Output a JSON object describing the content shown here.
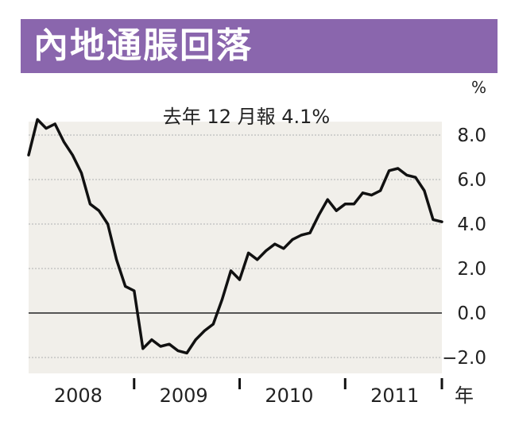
{
  "header": {
    "title": "內地通脹回落"
  },
  "chart_data": {
    "type": "line",
    "title": "內地通脹回落",
    "annotation": "去年 12 月報 4.1%",
    "y_unit": "%",
    "x_unit": "年",
    "ylim": [
      -2.8,
      8.6
    ],
    "yticks": [
      8.0,
      6.0,
      4.0,
      2.0,
      0.0,
      -2.0
    ],
    "ytick_labels": [
      "8.0",
      "6.0",
      "4.0",
      "2.0",
      "0.0",
      "−2.0"
    ],
    "xlim": [
      "2008-01",
      "2011-12"
    ],
    "year_labels": [
      "2008",
      "2009",
      "2010",
      "2011"
    ],
    "grid": true,
    "colors": {
      "line": "#111111",
      "fill": "#f1efea",
      "grid": "#bdbdbd",
      "zero": "#555555",
      "header": "#8a66ad"
    },
    "series": [
      {
        "x": [
          "2008-01",
          "2008-02",
          "2008-03",
          "2008-04",
          "2008-05",
          "2008-06",
          "2008-07",
          "2008-08",
          "2008-09",
          "2008-10",
          "2008-11",
          "2008-12",
          "2009-01",
          "2009-02",
          "2009-03",
          "2009-04",
          "2009-05",
          "2009-06",
          "2009-07",
          "2009-08",
          "2009-09",
          "2009-10",
          "2009-11",
          "2009-12",
          "2010-01",
          "2010-02",
          "2010-03",
          "2010-04",
          "2010-05",
          "2010-06",
          "2010-07",
          "2010-08",
          "2010-09",
          "2010-10",
          "2010-11",
          "2010-12",
          "2011-01",
          "2011-02",
          "2011-03",
          "2011-04",
          "2011-05",
          "2011-06",
          "2011-07",
          "2011-08",
          "2011-09",
          "2011-10",
          "2011-11",
          "2011-12"
        ],
        "values": [
          7.1,
          8.7,
          8.3,
          8.5,
          7.7,
          7.1,
          6.3,
          4.9,
          4.6,
          4.0,
          2.4,
          1.2,
          1.0,
          -1.6,
          -1.2,
          -1.5,
          -1.4,
          -1.7,
          -1.8,
          -1.2,
          -0.8,
          -0.5,
          0.6,
          1.9,
          1.5,
          2.7,
          2.4,
          2.8,
          3.1,
          2.9,
          3.3,
          3.5,
          3.6,
          4.4,
          5.1,
          4.6,
          4.9,
          4.9,
          5.4,
          5.3,
          5.5,
          6.4,
          6.5,
          6.2,
          6.1,
          5.5,
          4.2,
          4.1
        ]
      }
    ]
  }
}
